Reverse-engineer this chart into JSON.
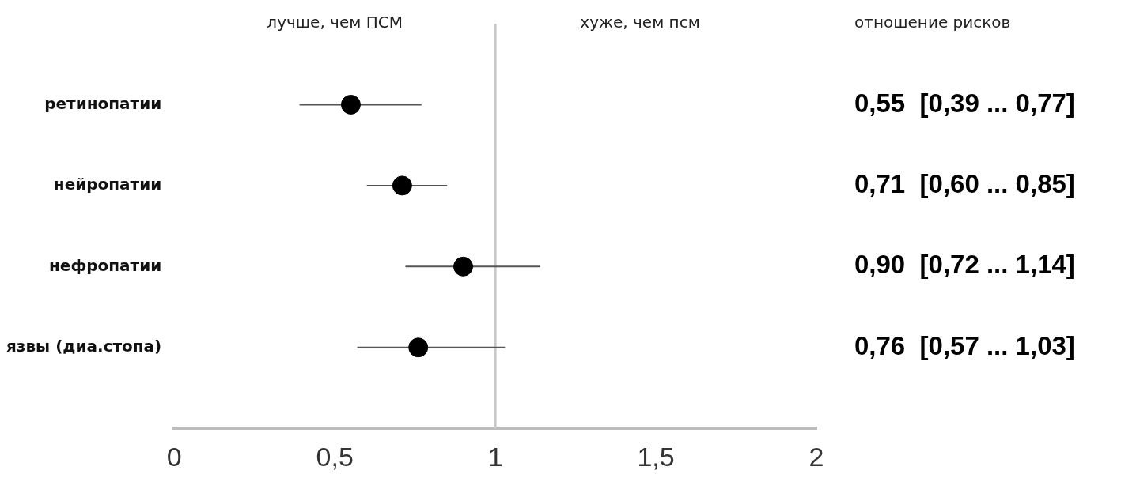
{
  "chart_data": {
    "type": "scatter",
    "orientation": "horizontal",
    "marker": "circle",
    "color": "#000000",
    "categories": [
      "ретинопатии",
      "нейропатии",
      "нефропатии",
      "язвы (диа.стопа)"
    ],
    "values": [
      0.55,
      0.71,
      0.9,
      0.76
    ],
    "errors": [
      [
        0.39,
        0.77
      ],
      [
        0.6,
        0.85
      ],
      [
        0.72,
        1.14
      ],
      [
        0.57,
        1.03
      ]
    ],
    "value_labels": [
      "0,55  [0,39 ... 0,77]",
      "0,71  [0,60 ... 0,85]",
      "0,90  [0,72 ... 1,14]",
      "0,76  [0,57 ... 1,03]"
    ],
    "xlim": [
      0,
      2
    ],
    "xticks": [
      0,
      {
        "value": 0.5,
        "label": "0,5"
      },
      1,
      {
        "value": 1.5,
        "label": "1,5"
      },
      2
    ],
    "ref_lines": [
      {
        "axis": "x",
        "value": 1,
        "color": "#c8c8c8"
      }
    ],
    "annotations": [
      "лучше, чем ПСМ",
      "хуже, чем псм",
      "отношение рисков"
    ]
  }
}
